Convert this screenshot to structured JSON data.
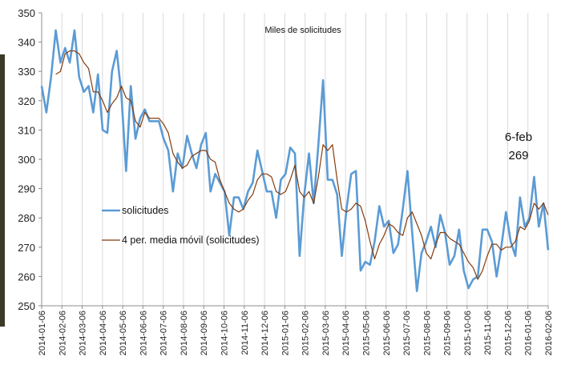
{
  "chart_data": {
    "type": "line",
    "title": "Miles de solicitudes",
    "xlabel": "",
    "ylabel": "",
    "ylim": [
      250,
      350
    ],
    "yticks": [
      250,
      260,
      270,
      280,
      290,
      300,
      310,
      320,
      330,
      340,
      350
    ],
    "xtick_labels": [
      "2014-01-06",
      "2014-02-06",
      "2014-03-06",
      "2014-04-06",
      "2014-05-06",
      "2014-06-06",
      "2014-07-06",
      "2014-08-06",
      "2014-09-06",
      "2014-10-06",
      "2014-11-06",
      "2014-12-06",
      "2015-01-06",
      "2015-02-06",
      "2015-03-06",
      "2015-04-06",
      "2015-05-06",
      "2015-06-06",
      "2015-07-06",
      "2015-08-06",
      "2015-09-06",
      "2015-10-06",
      "2015-11-06",
      "2015-12-06",
      "2016-01-06",
      "2016-02-06"
    ],
    "grid": "vertical",
    "legend_placement": "left-bottom",
    "annotation": {
      "line1": "6-feb",
      "line2": "269"
    },
    "series": [
      {
        "name": "solicitudes",
        "color": "#5b9bd5",
        "values": [
          325,
          316,
          328,
          344,
          333,
          338,
          333,
          344,
          328,
          323,
          325,
          316,
          329,
          310,
          309,
          330,
          337,
          322,
          296,
          325,
          307,
          314,
          317,
          313,
          313,
          313,
          307,
          303,
          289,
          302,
          297,
          308,
          302,
          297,
          305,
          309,
          289,
          295,
          292,
          289,
          274,
          287,
          287,
          283,
          289,
          292,
          303,
          296,
          289,
          289,
          280,
          293,
          295,
          304,
          302,
          267,
          288,
          302,
          285,
          305,
          327,
          293,
          293,
          288,
          267,
          283,
          295,
          296,
          262,
          265,
          264,
          272,
          284,
          277,
          279,
          268,
          271,
          283,
          296,
          275,
          255,
          268,
          272,
          277,
          270,
          281,
          275,
          264,
          267,
          276,
          262,
          256,
          259,
          260,
          276,
          276,
          272,
          260,
          270,
          282,
          272,
          267,
          287,
          277,
          280,
          294,
          277,
          285,
          269
        ]
      },
      {
        "name": "4 per. media móvil (solicitudes)",
        "color": "#843c0c",
        "values": [
          null,
          null,
          null,
          329,
          330,
          336,
          337,
          337,
          336,
          333,
          331,
          323,
          323,
          320,
          316,
          319,
          321,
          325,
          321,
          320,
          313,
          311,
          316,
          314,
          314,
          314,
          312,
          309,
          302,
          299,
          297,
          298,
          301,
          302,
          303,
          303,
          300,
          299,
          293,
          289,
          285,
          283,
          282,
          283,
          286,
          288,
          293,
          295,
          295,
          294,
          289,
          288,
          289,
          293,
          298,
          289,
          287,
          289,
          285,
          294,
          305,
          303,
          305,
          293,
          283,
          282,
          283,
          285,
          284,
          279,
          272,
          266,
          271,
          274,
          278,
          277,
          275,
          274,
          280,
          282,
          278,
          274,
          268,
          266,
          271,
          275,
          275,
          273,
          272,
          271,
          268,
          265,
          263,
          259,
          262,
          267,
          271,
          271,
          269,
          270,
          270,
          272,
          277,
          276,
          279,
          285,
          283,
          285,
          281
        ]
      }
    ]
  }
}
